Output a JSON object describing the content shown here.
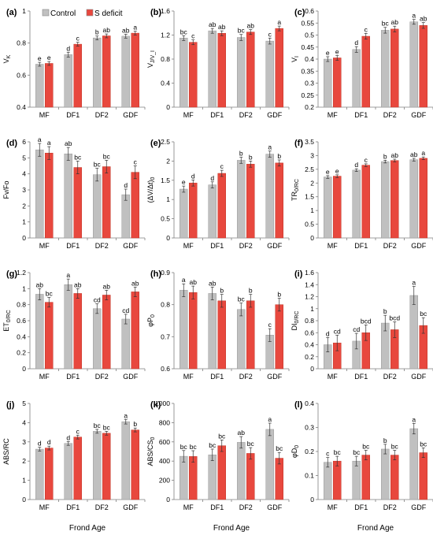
{
  "colors": {
    "control": "#c0c0c0",
    "deficit": "#e8483e",
    "axis": "#7f7f7f",
    "text": "#000000"
  },
  "legend": {
    "control": "Control",
    "deficit": "S deficit"
  },
  "shared_xlabel": "Frond Age",
  "chart_data": [
    {
      "type": "bar",
      "panel": "(a)",
      "ylabel": "V_K",
      "categories": [
        "MF",
        "DF1",
        "DF2",
        "GDF"
      ],
      "ylim": [
        0.4,
        1.0
      ],
      "yticks": [
        "0.4",
        "0.6",
        "0.8",
        "1"
      ],
      "series": [
        {
          "name": "Control",
          "values": [
            0.668,
            0.728,
            0.832,
            0.843
          ],
          "errors": [
            0.012,
            0.015,
            0.012,
            0.012
          ],
          "letters": [
            "e",
            "d",
            "b",
            "ab"
          ]
        },
        {
          "name": "S deficit",
          "values": [
            0.673,
            0.793,
            0.845,
            0.862
          ],
          "errors": [
            0.012,
            0.012,
            0.012,
            0.012
          ],
          "letters": [
            "e",
            "c",
            "ab",
            "a"
          ]
        }
      ]
    },
    {
      "type": "bar",
      "panel": "(b)",
      "ylabel": "V_J/V_I",
      "categories": [
        "MF",
        "DF1",
        "DF2",
        "GDF"
      ],
      "ylim": [
        0,
        1.6
      ],
      "yticks": [
        "0",
        "0.4",
        "0.8",
        "1.2",
        "1.6"
      ],
      "series": [
        {
          "name": "Control",
          "values": [
            1.15,
            1.27,
            1.16,
            1.1
          ],
          "errors": [
            0.04,
            0.04,
            0.05,
            0.05
          ],
          "letters": [
            "bc",
            "ab",
            "bc",
            "c"
          ]
        },
        {
          "name": "S deficit",
          "values": [
            1.08,
            1.23,
            1.25,
            1.31
          ],
          "errors": [
            0.04,
            0.04,
            0.04,
            0.04
          ],
          "letters": [
            "c",
            "ab",
            "ab",
            "a"
          ]
        }
      ]
    },
    {
      "type": "bar",
      "panel": "(c)",
      "ylabel": "V_I",
      "categories": [
        "MF",
        "DF1",
        "DF2",
        "GDF"
      ],
      "ylim": [
        0.2,
        0.6
      ],
      "yticks": [
        "0.2",
        "0.25",
        "0.3",
        "0.35",
        "0.4",
        "0.45",
        "0.5",
        "0.55",
        "0.6"
      ],
      "series": [
        {
          "name": "Control",
          "values": [
            0.4,
            0.44,
            0.52,
            0.555
          ],
          "errors": [
            0.01,
            0.012,
            0.012,
            0.01
          ],
          "letters": [
            "e",
            "d",
            "bc",
            "a"
          ]
        },
        {
          "name": "S deficit",
          "values": [
            0.405,
            0.495,
            0.525,
            0.54
          ],
          "errors": [
            0.01,
            0.012,
            0.012,
            0.012
          ],
          "letters": [
            "e",
            "c",
            "ab",
            "ab"
          ]
        }
      ]
    },
    {
      "type": "bar",
      "panel": "(d)",
      "ylabel": "Fv/Fo",
      "categories": [
        "MF",
        "DF1",
        "DF2",
        "GDF"
      ],
      "ylim": [
        0,
        6
      ],
      "yticks": [
        "0",
        "1",
        "2",
        "3",
        "4",
        "5",
        "6"
      ],
      "series": [
        {
          "name": "Control",
          "values": [
            5.5,
            5.25,
            3.95,
            2.7
          ],
          "errors": [
            0.4,
            0.4,
            0.4,
            0.35
          ],
          "letters": [
            "a",
            "ab",
            "bc",
            "d"
          ]
        },
        {
          "name": "S deficit",
          "values": [
            5.3,
            4.4,
            4.45,
            4.1
          ],
          "errors": [
            0.4,
            0.4,
            0.4,
            0.4
          ],
          "letters": [
            "a",
            "bc",
            "bc",
            "c"
          ]
        }
      ]
    },
    {
      "type": "bar",
      "panel": "(e)",
      "ylabel": "(ΔV/Δt)_0",
      "categories": [
        "MF",
        "DF1",
        "DF2",
        "GDF"
      ],
      "ylim": [
        0,
        2.5
      ],
      "yticks": [
        "0",
        "0.5",
        "1",
        "1.5",
        "2",
        "2.5"
      ],
      "series": [
        {
          "name": "Control",
          "values": [
            1.27,
            1.38,
            2.02,
            2.18
          ],
          "errors": [
            0.08,
            0.08,
            0.08,
            0.08
          ],
          "letters": [
            "e",
            "d",
            "b",
            "a"
          ]
        },
        {
          "name": "S deficit",
          "values": [
            1.43,
            1.68,
            1.92,
            1.95
          ],
          "errors": [
            0.08,
            0.08,
            0.08,
            0.08
          ],
          "letters": [
            "d",
            "c",
            "b",
            "b"
          ]
        }
      ]
    },
    {
      "type": "bar",
      "panel": "(f)",
      "ylabel": "TR_0/RC",
      "categories": [
        "MF",
        "DF1",
        "DF2",
        "GDF"
      ],
      "ylim": [
        0,
        3.5
      ],
      "yticks": [
        "0",
        "0.5",
        "1",
        "1.5",
        "2",
        "2.5",
        "3",
        "3.5"
      ],
      "series": [
        {
          "name": "Control",
          "values": [
            2.22,
            2.47,
            2.78,
            2.85
          ],
          "errors": [
            0.05,
            0.05,
            0.05,
            0.05
          ],
          "letters": [
            "e",
            "d",
            "b",
            "ab"
          ]
        },
        {
          "name": "S deficit",
          "values": [
            2.25,
            2.65,
            2.82,
            2.9
          ],
          "errors": [
            0.05,
            0.05,
            0.05,
            0.05
          ],
          "letters": [
            "e",
            "c",
            "ab",
            "a"
          ]
        }
      ]
    },
    {
      "type": "bar",
      "panel": "(g)",
      "ylabel": "ET_0/RC",
      "categories": [
        "MF",
        "DF1",
        "DF2",
        "GDF"
      ],
      "ylim": [
        0,
        1.2
      ],
      "yticks": [
        "0",
        "0.2",
        "0.4",
        "0.6",
        "0.8",
        "1",
        "1.2"
      ],
      "series": [
        {
          "name": "Control",
          "values": [
            0.93,
            1.05,
            0.75,
            0.62
          ],
          "errors": [
            0.07,
            0.07,
            0.06,
            0.06
          ],
          "letters": [
            "ab",
            "a",
            "cd",
            "cd"
          ]
        },
        {
          "name": "S deficit",
          "values": [
            0.83,
            0.94,
            0.92,
            0.96
          ],
          "errors": [
            0.06,
            0.06,
            0.06,
            0.06
          ],
          "letters": [
            "bc",
            "ab",
            "ab",
            "ab"
          ]
        }
      ]
    },
    {
      "type": "bar",
      "panel": "(h)",
      "ylabel": "φP_0",
      "categories": [
        "MF",
        "DF1",
        "DF2",
        "GDF"
      ],
      "ylim": [
        0.6,
        0.9
      ],
      "yticks": [
        "0.6",
        "0.7",
        "0.8",
        "0.9"
      ],
      "series": [
        {
          "name": "Control",
          "values": [
            0.845,
            0.835,
            0.785,
            0.705
          ],
          "errors": [
            0.02,
            0.02,
            0.02,
            0.02
          ],
          "letters": [
            "a",
            "ab",
            "bc",
            "c"
          ]
        },
        {
          "name": "S deficit",
          "values": [
            0.838,
            0.812,
            0.812,
            0.8
          ],
          "errors": [
            0.02,
            0.02,
            0.02,
            0.02
          ],
          "letters": [
            "ab",
            "b",
            "b",
            "b"
          ]
        }
      ]
    },
    {
      "type": "bar",
      "panel": "(i)",
      "ylabel": "DI_0/RC",
      "categories": [
        "MF",
        "DF1",
        "DF2",
        "GDF"
      ],
      "ylim": [
        0,
        1.6
      ],
      "yticks": [
        "0",
        "0.2",
        "0.4",
        "0.6",
        "0.8",
        "1",
        "1.2",
        "1.4",
        "1.6"
      ],
      "series": [
        {
          "name": "Control",
          "values": [
            0.4,
            0.46,
            0.76,
            1.22
          ],
          "errors": [
            0.12,
            0.13,
            0.13,
            0.15
          ],
          "letters": [
            "d",
            "cd",
            "b",
            "a"
          ]
        },
        {
          "name": "S deficit",
          "values": [
            0.43,
            0.6,
            0.65,
            0.72
          ],
          "errors": [
            0.13,
            0.13,
            0.13,
            0.13
          ],
          "letters": [
            "cd",
            "bcd",
            "bcd",
            "bc"
          ]
        }
      ]
    },
    {
      "type": "bar",
      "panel": "(j)",
      "ylabel": "ABS/RC",
      "categories": [
        "MF",
        "DF1",
        "DF2",
        "GDF"
      ],
      "ylim": [
        0,
        5
      ],
      "yticks": [
        "0",
        "1",
        "2",
        "3",
        "4",
        "5"
      ],
      "series": [
        {
          "name": "Control",
          "values": [
            2.62,
            2.92,
            3.55,
            4.05
          ],
          "errors": [
            0.1,
            0.1,
            0.1,
            0.12
          ],
          "letters": [
            "d",
            "d",
            "bc",
            "a"
          ]
        },
        {
          "name": "S deficit",
          "values": [
            2.68,
            3.25,
            3.45,
            3.62
          ],
          "errors": [
            0.1,
            0.1,
            0.1,
            0.1
          ],
          "letters": [
            "d",
            "c",
            "bc",
            "b"
          ]
        }
      ]
    },
    {
      "type": "bar",
      "panel": "(k)",
      "ylabel": "ABS/CS_0",
      "categories": [
        "MF",
        "DF1",
        "DF2",
        "GDF"
      ],
      "ylim": [
        0,
        1000
      ],
      "yticks": [
        "0",
        "200",
        "400",
        "600",
        "800",
        "1000"
      ],
      "series": [
        {
          "name": "Control",
          "values": [
            450,
            465,
            595,
            730
          ],
          "errors": [
            60,
            60,
            60,
            65
          ],
          "letters": [
            "bc",
            "bc",
            "ab",
            "a"
          ]
        },
        {
          "name": "S deficit",
          "values": [
            448,
            560,
            480,
            430
          ],
          "errors": [
            60,
            60,
            60,
            60
          ],
          "letters": [
            "bc",
            "bc",
            "bc",
            "bc"
          ]
        }
      ]
    },
    {
      "type": "bar",
      "panel": "(l)",
      "ylabel": "φD_0",
      "categories": [
        "MF",
        "DF1",
        "DF2",
        "GDF"
      ],
      "ylim": [
        0,
        0.4
      ],
      "yticks": [
        "0",
        "0.1",
        "0.2",
        "0.3",
        "0.4"
      ],
      "series": [
        {
          "name": "Control",
          "values": [
            0.155,
            0.16,
            0.21,
            0.295
          ],
          "errors": [
            0.02,
            0.02,
            0.02,
            0.022
          ],
          "letters": [
            "c",
            "bc",
            "b",
            "a"
          ]
        },
        {
          "name": "S deficit",
          "values": [
            0.16,
            0.185,
            0.185,
            0.195
          ],
          "errors": [
            0.02,
            0.02,
            0.02,
            0.02
          ],
          "letters": [
            "bc",
            "bc",
            "bc",
            "bc"
          ]
        }
      ]
    }
  ]
}
